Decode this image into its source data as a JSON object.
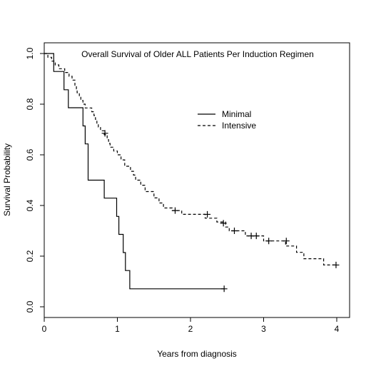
{
  "chart_data": {
    "type": "line",
    "title": "Overall Survival of Older ALL Patients Per Induction Regimen",
    "xlabel": "Years from diagnosis",
    "ylabel": "Survival Probability",
    "xlim": [
      0,
      4.2
    ],
    "ylim": [
      0,
      1
    ],
    "xticks": [
      "0",
      "1",
      "2",
      "3",
      "4"
    ],
    "yticks": [
      "0.0",
      "0.2",
      "0.4",
      "0.6",
      "0.8",
      "1.0"
    ],
    "grid": false,
    "legend_position": "upper-right",
    "series": [
      {
        "name": "Minimal",
        "line_style": "solid",
        "steps": [
          [
            0,
            1.0
          ],
          [
            0.13,
            0.929
          ],
          [
            0.27,
            0.857
          ],
          [
            0.33,
            0.786
          ],
          [
            0.53,
            0.714
          ],
          [
            0.56,
            0.643
          ],
          [
            0.6,
            0.5
          ],
          [
            0.82,
            0.429
          ],
          [
            0.99,
            0.357
          ],
          [
            1.02,
            0.286
          ],
          [
            1.08,
            0.214
          ],
          [
            1.11,
            0.143
          ],
          [
            1.17,
            0.071
          ],
          [
            2.46,
            0.071
          ]
        ],
        "censored": [
          [
            2.46,
            0.071
          ]
        ]
      },
      {
        "name": "Intensive",
        "line_style": "dashed",
        "steps": [
          [
            0,
            1.0
          ],
          [
            0.05,
            0.985
          ],
          [
            0.1,
            0.97
          ],
          [
            0.15,
            0.955
          ],
          [
            0.2,
            0.94
          ],
          [
            0.28,
            0.925
          ],
          [
            0.34,
            0.91
          ],
          [
            0.38,
            0.895
          ],
          [
            0.42,
            0.875
          ],
          [
            0.44,
            0.86
          ],
          [
            0.45,
            0.845
          ],
          [
            0.48,
            0.83
          ],
          [
            0.5,
            0.815
          ],
          [
            0.53,
            0.8
          ],
          [
            0.56,
            0.785
          ],
          [
            0.65,
            0.77
          ],
          [
            0.68,
            0.755
          ],
          [
            0.7,
            0.74
          ],
          [
            0.72,
            0.725
          ],
          [
            0.74,
            0.71
          ],
          [
            0.77,
            0.695
          ],
          [
            0.82,
            0.68
          ],
          [
            0.86,
            0.66
          ],
          [
            0.88,
            0.645
          ],
          [
            0.9,
            0.63
          ],
          [
            0.95,
            0.615
          ],
          [
            1.0,
            0.6
          ],
          [
            1.05,
            0.58
          ],
          [
            1.1,
            0.555
          ],
          [
            1.18,
            0.535
          ],
          [
            1.22,
            0.52
          ],
          [
            1.25,
            0.5
          ],
          [
            1.32,
            0.48
          ],
          [
            1.38,
            0.455
          ],
          [
            1.5,
            0.43
          ],
          [
            1.57,
            0.41
          ],
          [
            1.63,
            0.39
          ],
          [
            1.75,
            0.38
          ],
          [
            1.88,
            0.365
          ],
          [
            2.2,
            0.35
          ],
          [
            2.36,
            0.335
          ],
          [
            2.48,
            0.315
          ],
          [
            2.53,
            0.3
          ],
          [
            2.75,
            0.28
          ],
          [
            3.0,
            0.26
          ],
          [
            3.3,
            0.24
          ],
          [
            3.45,
            0.215
          ],
          [
            3.55,
            0.19
          ],
          [
            3.82,
            0.165
          ],
          [
            4.0,
            0.165
          ]
        ],
        "censored": [
          [
            0.83,
            0.685
          ],
          [
            1.79,
            0.38
          ],
          [
            2.23,
            0.365
          ],
          [
            2.45,
            0.33
          ],
          [
            2.6,
            0.3
          ],
          [
            2.83,
            0.28
          ],
          [
            2.9,
            0.28
          ],
          [
            3.07,
            0.26
          ],
          [
            3.31,
            0.26
          ],
          [
            3.99,
            0.165
          ]
        ]
      }
    ]
  }
}
